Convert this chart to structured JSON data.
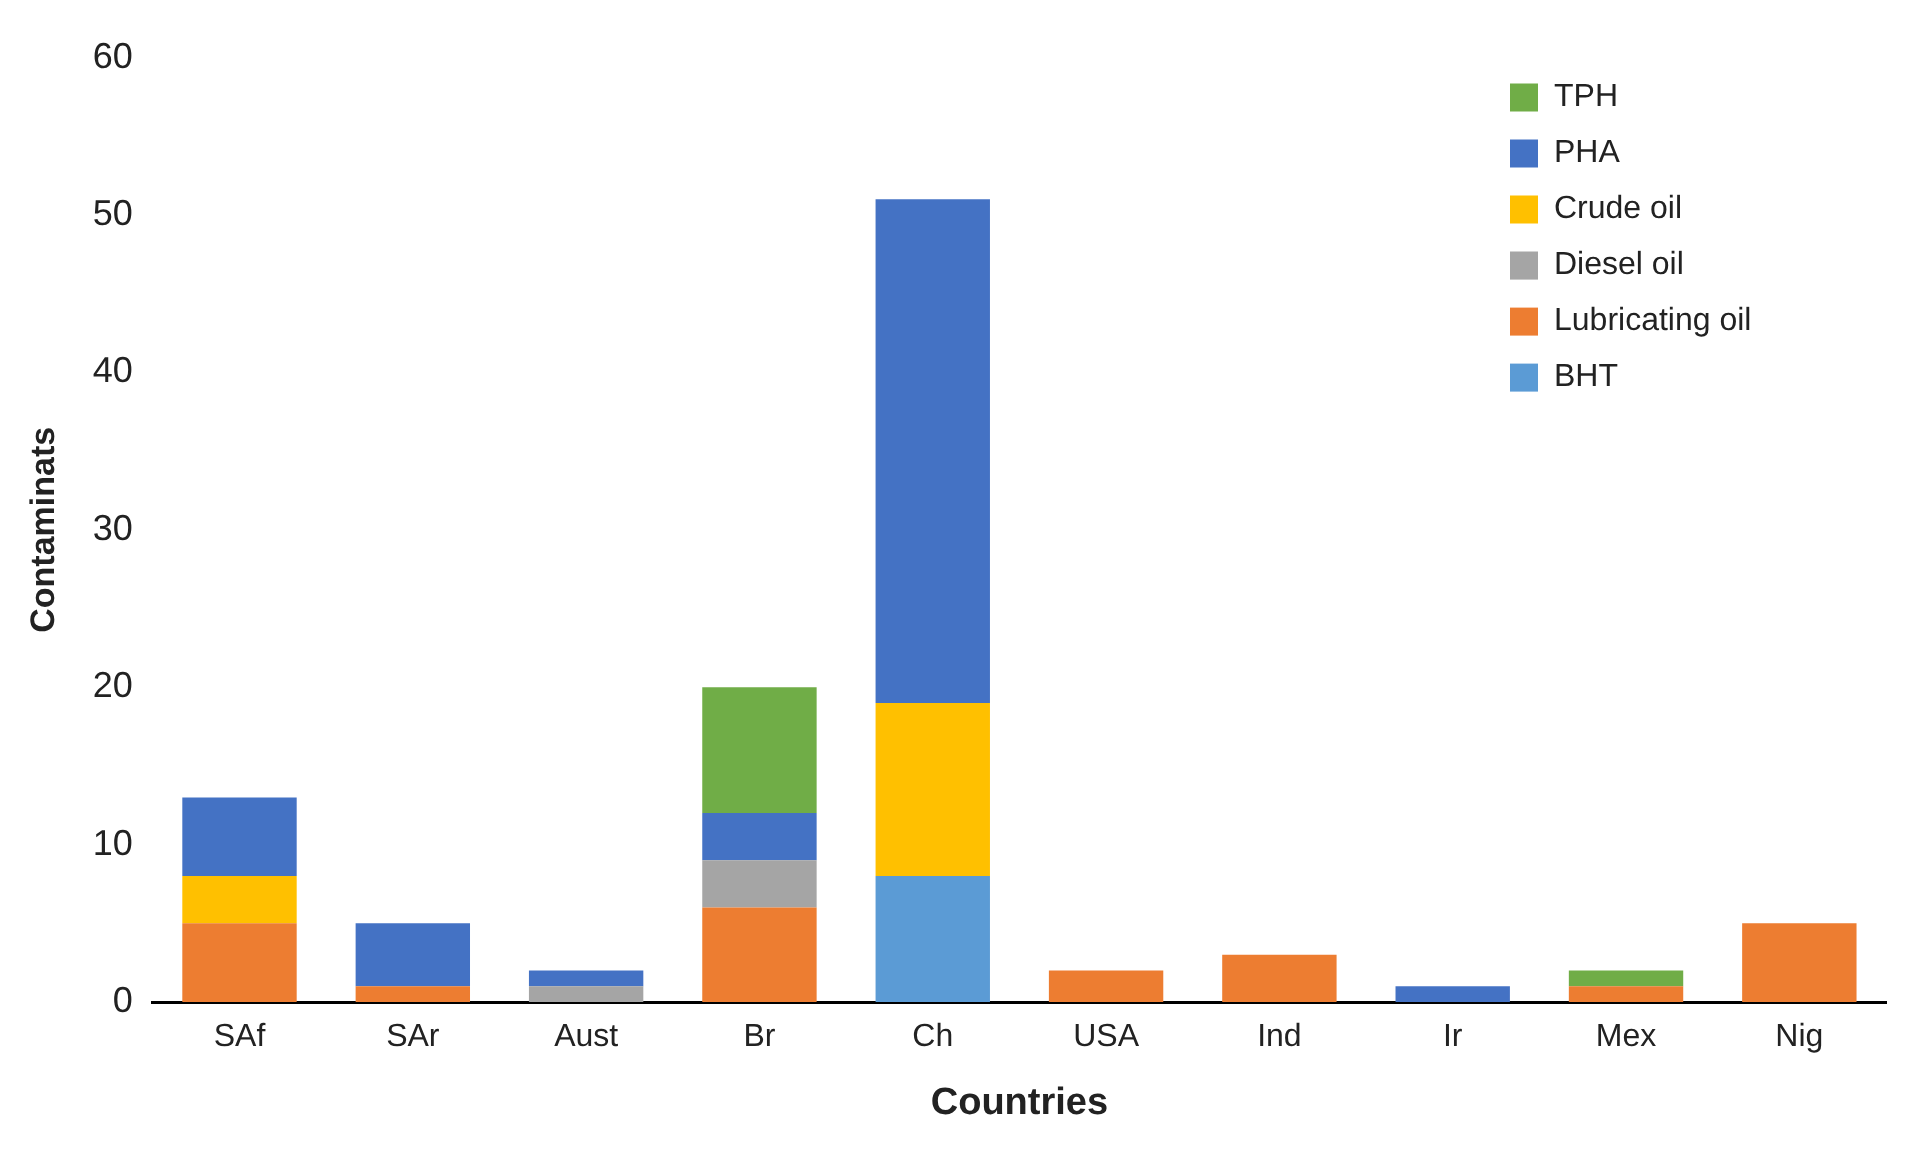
{
  "chart_data": {
    "type": "bar",
    "stacked": true,
    "xlabel": "Countries",
    "ylabel": "Contaminats",
    "categories": [
      "SAf",
      "SAr",
      "Aust",
      "Br",
      "Ch",
      "USA",
      "Ind",
      "Ir",
      "Mex",
      "Nig"
    ],
    "series": [
      {
        "name": "BHT",
        "color": "#5b9bd5",
        "values": [
          0,
          0,
          0,
          0,
          8,
          0,
          0,
          0,
          0,
          0
        ]
      },
      {
        "name": "Lubricating oil",
        "color": "#ed7d31",
        "values": [
          5,
          1,
          0,
          6,
          0,
          2,
          3,
          0,
          1,
          5
        ]
      },
      {
        "name": "Diesel oil",
        "color": "#a5a5a5",
        "values": [
          0,
          0,
          1,
          3,
          0,
          0,
          0,
          0,
          0,
          0
        ]
      },
      {
        "name": "Crude oil",
        "color": "#ffc000",
        "values": [
          3,
          0,
          0,
          0,
          11,
          0,
          0,
          0,
          0,
          0
        ]
      },
      {
        "name": "PHA",
        "color": "#4472c4",
        "values": [
          5,
          4,
          1,
          3,
          32,
          0,
          0,
          1,
          0,
          0
        ]
      },
      {
        "name": "TPH",
        "color": "#70ad47",
        "values": [
          0,
          0,
          0,
          8,
          0,
          0,
          0,
          0,
          1,
          0
        ]
      }
    ],
    "ylim": [
      0,
      60
    ],
    "yticks": [
      0,
      10,
      20,
      30,
      40,
      50,
      60
    ],
    "grid": false,
    "legend": "top right"
  }
}
